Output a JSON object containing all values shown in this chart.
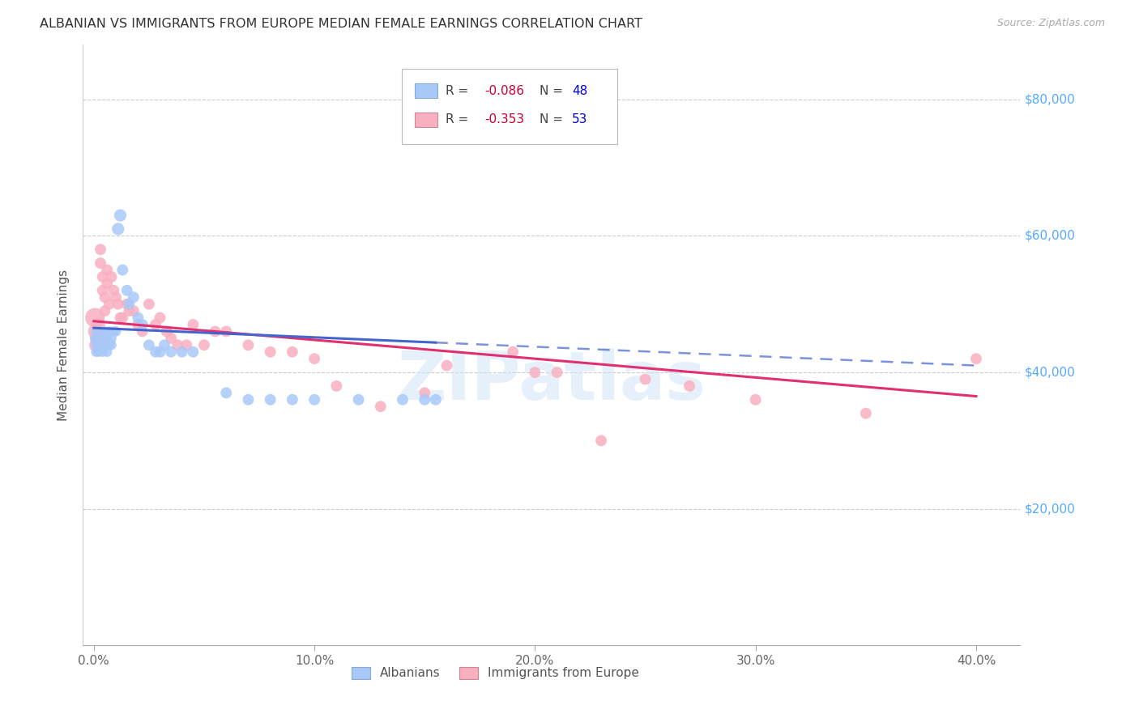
{
  "title": "ALBANIAN VS IMMIGRANTS FROM EUROPE MEDIAN FEMALE EARNINGS CORRELATION CHART",
  "source": "Source: ZipAtlas.com",
  "ylabel": "Median Female Earnings",
  "xlim": [
    -0.005,
    0.42
  ],
  "ylim": [
    0,
    88000
  ],
  "albanian_R": -0.086,
  "albanian_N": 48,
  "immigrant_R": -0.353,
  "immigrant_N": 53,
  "albanian_color": "#a8c8f8",
  "albanian_color_line": "#4466cc",
  "immigrant_color": "#f8b0c0",
  "immigrant_color_line": "#e03070",
  "legend_R_color": "#cc0033",
  "legend_N_color": "#0000dd",
  "background_color": "#ffffff",
  "right_label_color": "#55aaff",
  "albanian_x": [
    0.0005,
    0.001,
    0.001,
    0.001,
    0.002,
    0.002,
    0.002,
    0.002,
    0.003,
    0.003,
    0.003,
    0.004,
    0.004,
    0.005,
    0.005,
    0.005,
    0.006,
    0.006,
    0.007,
    0.007,
    0.008,
    0.008,
    0.009,
    0.01,
    0.011,
    0.012,
    0.013,
    0.015,
    0.016,
    0.018,
    0.02,
    0.022,
    0.025,
    0.028,
    0.03,
    0.032,
    0.035,
    0.04,
    0.045,
    0.06,
    0.07,
    0.08,
    0.09,
    0.1,
    0.12,
    0.14,
    0.15,
    0.155
  ],
  "albanian_y": [
    45000,
    46000,
    44000,
    43000,
    45000,
    44000,
    43000,
    44000,
    46000,
    45000,
    44000,
    44000,
    43000,
    46000,
    45000,
    44000,
    45000,
    43000,
    46000,
    44000,
    44000,
    45000,
    46000,
    46000,
    61000,
    63000,
    55000,
    52000,
    50000,
    51000,
    48000,
    47000,
    44000,
    43000,
    43000,
    44000,
    43000,
    43000,
    43000,
    37000,
    36000,
    36000,
    36000,
    36000,
    36000,
    36000,
    36000,
    36000
  ],
  "albanian_size": [
    80,
    80,
    80,
    80,
    80,
    80,
    80,
    80,
    80,
    80,
    80,
    80,
    80,
    80,
    80,
    80,
    80,
    80,
    80,
    80,
    80,
    80,
    80,
    80,
    120,
    120,
    100,
    100,
    100,
    100,
    100,
    100,
    100,
    100,
    100,
    100,
    100,
    100,
    100,
    100,
    100,
    100,
    100,
    100,
    100,
    100,
    100,
    100
  ],
  "immigrant_x": [
    0.0005,
    0.001,
    0.001,
    0.002,
    0.002,
    0.003,
    0.003,
    0.004,
    0.004,
    0.005,
    0.005,
    0.006,
    0.006,
    0.007,
    0.008,
    0.009,
    0.01,
    0.011,
    0.012,
    0.013,
    0.015,
    0.016,
    0.018,
    0.02,
    0.022,
    0.025,
    0.028,
    0.03,
    0.033,
    0.035,
    0.038,
    0.042,
    0.045,
    0.05,
    0.055,
    0.06,
    0.07,
    0.08,
    0.09,
    0.1,
    0.11,
    0.13,
    0.15,
    0.16,
    0.19,
    0.2,
    0.21,
    0.23,
    0.25,
    0.27,
    0.3,
    0.35,
    0.4
  ],
  "immigrant_y": [
    48000,
    46000,
    44000,
    47000,
    45000,
    56000,
    58000,
    54000,
    52000,
    51000,
    49000,
    55000,
    53000,
    50000,
    54000,
    52000,
    51000,
    50000,
    48000,
    48000,
    50000,
    49000,
    49000,
    47000,
    46000,
    50000,
    47000,
    48000,
    46000,
    45000,
    44000,
    44000,
    47000,
    44000,
    46000,
    46000,
    44000,
    43000,
    43000,
    42000,
    38000,
    35000,
    37000,
    41000,
    43000,
    40000,
    40000,
    30000,
    39000,
    38000,
    36000,
    34000,
    42000
  ],
  "immigrant_size": [
    300,
    200,
    150,
    150,
    200,
    100,
    100,
    100,
    100,
    100,
    100,
    100,
    100,
    100,
    100,
    100,
    100,
    100,
    100,
    100,
    100,
    100,
    100,
    100,
    100,
    100,
    100,
    100,
    100,
    100,
    100,
    100,
    100,
    100,
    100,
    100,
    100,
    100,
    100,
    100,
    100,
    100,
    100,
    100,
    100,
    100,
    100,
    100,
    100,
    100,
    100,
    100,
    100
  ],
  "alb_line_x0": 0.0,
  "alb_line_x_solid_end": 0.155,
  "alb_line_x1": 0.4,
  "alb_line_y0": 46500,
  "alb_line_y1": 41000,
  "imm_line_x0": 0.0,
  "imm_line_x1": 0.4,
  "imm_line_y0": 47500,
  "imm_line_y1": 36500,
  "watermark_text": "ZIPatlas",
  "xlabel_ticks": [
    "0.0%",
    "10.0%",
    "20.0%",
    "30.0%",
    "40.0%"
  ],
  "xlabel_vals": [
    0.0,
    0.1,
    0.2,
    0.3,
    0.4
  ]
}
